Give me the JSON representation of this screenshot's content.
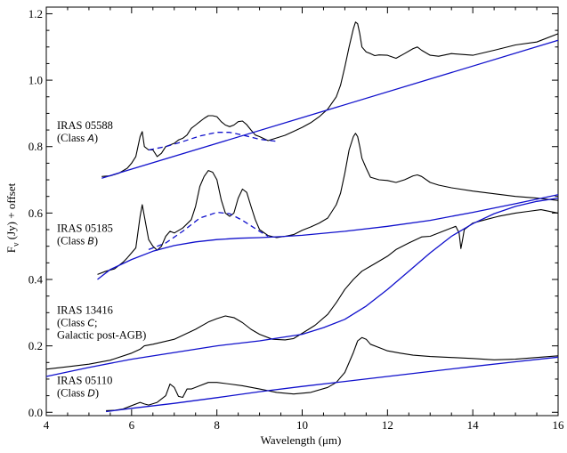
{
  "chart_data": {
    "type": "line",
    "title": "",
    "xlabel": "Wavelength (μm)",
    "ylabel": "F_ν (Jy) + offset",
    "ylabel_main": "F",
    "ylabel_sub": "ν",
    "ylabel_rest": " (Jy) + offset",
    "xlim": [
      4,
      16
    ],
    "ylim": [
      -0.01,
      1.22
    ],
    "x_ticks": [
      4,
      6,
      8,
      10,
      12,
      14,
      16
    ],
    "x_tick_labels": [
      "4",
      "6",
      "8",
      "10",
      "12",
      "14",
      "16"
    ],
    "y_ticks": [
      0.0,
      0.2,
      0.4,
      0.6,
      0.8,
      1.0,
      1.2
    ],
    "y_tick_labels": [
      "0.0",
      "0.2",
      "0.4",
      "0.6",
      "0.8",
      "1.0",
      "1.2"
    ],
    "grid": false,
    "legend": "none",
    "colors": {
      "spectrum": "#000000",
      "continuum": "#1010cc",
      "feature_fit": "#1010cc"
    },
    "annotations": [
      {
        "lines": [
          "IRAS 05588",
          "(Class A)"
        ],
        "anchor": [
          4.25,
          0.853
        ],
        "letter": "A"
      },
      {
        "lines": [
          "IRAS 05185",
          "(Class B)"
        ],
        "anchor": [
          4.25,
          0.543
        ],
        "letter": "B"
      },
      {
        "lines": [
          "IRAS 13416",
          "(Class C;",
          "Galactic post-AGB)"
        ],
        "anchor": [
          4.25,
          0.297
        ],
        "letter": "C"
      },
      {
        "lines": [
          "IRAS 05110",
          "(Class D)"
        ],
        "anchor": [
          4.25,
          0.085
        ],
        "letter": "D"
      }
    ],
    "series": [
      {
        "role": "spectrum",
        "x": [
          5.3,
          5.5,
          5.7,
          5.9,
          6.0,
          6.1,
          6.2,
          6.25,
          6.3,
          6.4,
          6.5,
          6.6,
          6.7,
          6.8,
          6.9,
          7.0,
          7.1,
          7.2,
          7.3,
          7.4,
          7.5,
          7.6,
          7.7,
          7.8,
          7.9,
          8.0,
          8.1,
          8.2,
          8.3,
          8.4,
          8.5,
          8.6,
          8.7,
          8.8,
          8.9,
          9.0,
          9.2,
          9.4,
          9.6,
          9.8,
          10.0,
          10.2,
          10.4,
          10.6,
          10.8,
          10.9,
          11.0,
          11.1,
          11.2,
          11.25,
          11.3,
          11.35,
          11.4,
          11.5,
          11.6,
          11.7,
          11.8,
          12.0,
          12.2,
          12.4,
          12.6,
          12.7,
          12.8,
          13.0,
          13.2,
          13.5,
          14.0,
          14.5,
          15.0,
          15.5,
          16.0
        ],
        "values": [
          0.71,
          0.712,
          0.72,
          0.735,
          0.75,
          0.77,
          0.83,
          0.845,
          0.8,
          0.79,
          0.79,
          0.77,
          0.78,
          0.8,
          0.805,
          0.81,
          0.82,
          0.825,
          0.835,
          0.855,
          0.865,
          0.875,
          0.885,
          0.893,
          0.893,
          0.89,
          0.875,
          0.865,
          0.86,
          0.865,
          0.875,
          0.877,
          0.866,
          0.85,
          0.835,
          0.83,
          0.818,
          0.826,
          0.834,
          0.846,
          0.858,
          0.872,
          0.89,
          0.913,
          0.95,
          0.985,
          1.04,
          1.1,
          1.155,
          1.175,
          1.17,
          1.14,
          1.1,
          1.085,
          1.08,
          1.074,
          1.076,
          1.075,
          1.066,
          1.08,
          1.095,
          1.1,
          1.09,
          1.075,
          1.072,
          1.08,
          1.075,
          1.09,
          1.106,
          1.115,
          1.14
        ]
      },
      {
        "role": "continuum",
        "x": [
          5.3,
          16.0
        ],
        "values": [
          0.705,
          1.12
        ]
      },
      {
        "role": "feature-fit",
        "dashed": true,
        "x": [
          6.4,
          6.8,
          7.2,
          7.6,
          8.0,
          8.3,
          8.6,
          9.0,
          9.4
        ],
        "values": [
          0.79,
          0.8,
          0.815,
          0.832,
          0.843,
          0.843,
          0.835,
          0.822,
          0.816
        ]
      },
      {
        "role": "spectrum",
        "x": [
          5.2,
          5.4,
          5.6,
          5.8,
          5.9,
          6.0,
          6.1,
          6.2,
          6.25,
          6.3,
          6.4,
          6.5,
          6.6,
          6.7,
          6.8,
          6.9,
          7.0,
          7.2,
          7.4,
          7.5,
          7.6,
          7.7,
          7.8,
          7.9,
          8.0,
          8.1,
          8.2,
          8.3,
          8.4,
          8.5,
          8.6,
          8.7,
          8.8,
          8.9,
          9.0,
          9.2,
          9.4,
          9.6,
          9.8,
          10.0,
          10.2,
          10.4,
          10.6,
          10.8,
          10.9,
          11.0,
          11.1,
          11.2,
          11.25,
          11.3,
          11.35,
          11.4,
          11.5,
          11.6,
          11.8,
          12.0,
          12.2,
          12.4,
          12.6,
          12.7,
          12.8,
          13.0,
          13.2,
          13.5,
          14.0,
          14.5,
          15.0,
          15.5,
          16.0
        ],
        "values": [
          0.415,
          0.425,
          0.432,
          0.452,
          0.465,
          0.48,
          0.495,
          0.59,
          0.625,
          0.59,
          0.52,
          0.5,
          0.488,
          0.5,
          0.53,
          0.545,
          0.54,
          0.555,
          0.58,
          0.62,
          0.68,
          0.71,
          0.728,
          0.723,
          0.7,
          0.64,
          0.6,
          0.59,
          0.6,
          0.645,
          0.672,
          0.662,
          0.62,
          0.58,
          0.55,
          0.532,
          0.526,
          0.53,
          0.535,
          0.548,
          0.558,
          0.57,
          0.585,
          0.625,
          0.66,
          0.72,
          0.79,
          0.83,
          0.84,
          0.83,
          0.8,
          0.765,
          0.735,
          0.708,
          0.7,
          0.698,
          0.692,
          0.7,
          0.712,
          0.715,
          0.71,
          0.692,
          0.684,
          0.676,
          0.666,
          0.658,
          0.65,
          0.645,
          0.638
        ]
      },
      {
        "role": "continuum",
        "x": [
          5.2,
          5.5,
          6.0,
          6.5,
          7.0,
          7.5,
          8.0,
          8.5,
          9.0,
          9.5,
          10.0,
          11.0,
          12.0,
          13.0,
          14.0,
          15.0,
          16.0
        ],
        "values": [
          0.4,
          0.43,
          0.46,
          0.485,
          0.502,
          0.513,
          0.52,
          0.524,
          0.526,
          0.529,
          0.533,
          0.545,
          0.56,
          0.578,
          0.602,
          0.628,
          0.655
        ]
      },
      {
        "role": "feature-fit",
        "dashed": true,
        "x": [
          6.4,
          6.8,
          7.2,
          7.6,
          8.0,
          8.3,
          8.6,
          9.0,
          9.2
        ],
        "values": [
          0.49,
          0.51,
          0.545,
          0.585,
          0.602,
          0.598,
          0.578,
          0.545,
          0.53
        ]
      },
      {
        "role": "spectrum",
        "x": [
          4.0,
          4.5,
          5.0,
          5.5,
          6.0,
          6.2,
          6.3,
          6.5,
          7.0,
          7.5,
          7.8,
          8.0,
          8.2,
          8.4,
          8.6,
          8.8,
          9.0,
          9.3,
          9.6,
          9.8,
          10.0,
          10.3,
          10.6,
          10.8,
          11.0,
          11.2,
          11.4,
          11.6,
          11.8,
          12.0,
          12.2,
          12.5,
          12.8,
          13.0,
          13.3,
          13.6,
          13.68,
          13.72,
          13.76,
          13.8,
          14.0,
          14.3,
          14.6,
          15.0,
          15.3,
          15.6,
          16.0
        ],
        "values": [
          0.13,
          0.137,
          0.145,
          0.157,
          0.178,
          0.19,
          0.2,
          0.205,
          0.22,
          0.25,
          0.272,
          0.282,
          0.29,
          0.285,
          0.27,
          0.25,
          0.235,
          0.22,
          0.218,
          0.222,
          0.238,
          0.262,
          0.295,
          0.33,
          0.37,
          0.4,
          0.425,
          0.44,
          0.455,
          0.47,
          0.49,
          0.51,
          0.528,
          0.53,
          0.545,
          0.56,
          0.54,
          0.493,
          0.52,
          0.55,
          0.57,
          0.58,
          0.59,
          0.6,
          0.605,
          0.61,
          0.6
        ]
      },
      {
        "role": "continuum",
        "x": [
          4.0,
          5.0,
          6.0,
          7.0,
          8.0,
          9.0,
          10.0,
          10.5,
          11.0,
          11.5,
          12.0,
          12.5,
          13.0,
          13.5,
          14.0,
          14.5,
          15.0,
          15.5,
          16.0
        ],
        "values": [
          0.108,
          0.135,
          0.16,
          0.18,
          0.2,
          0.215,
          0.235,
          0.255,
          0.28,
          0.32,
          0.37,
          0.425,
          0.48,
          0.53,
          0.568,
          0.598,
          0.62,
          0.635,
          0.645
        ]
      },
      {
        "role": "spectrum",
        "x": [
          5.4,
          5.6,
          5.8,
          6.0,
          6.2,
          6.3,
          6.4,
          6.6,
          6.8,
          6.9,
          7.0,
          7.1,
          7.2,
          7.3,
          7.4,
          7.6,
          7.8,
          8.0,
          8.3,
          8.6,
          9.0,
          9.4,
          9.8,
          10.2,
          10.6,
          10.8,
          11.0,
          11.2,
          11.3,
          11.4,
          11.5,
          11.6,
          11.8,
          12.0,
          12.3,
          12.6,
          13.0,
          13.5,
          14.0,
          14.5,
          15.0,
          15.5,
          16.0
        ],
        "values": [
          0.005,
          0.006,
          0.01,
          0.02,
          0.03,
          0.025,
          0.022,
          0.03,
          0.05,
          0.085,
          0.075,
          0.048,
          0.045,
          0.07,
          0.07,
          0.08,
          0.09,
          0.09,
          0.085,
          0.08,
          0.07,
          0.06,
          0.055,
          0.06,
          0.075,
          0.09,
          0.12,
          0.18,
          0.215,
          0.225,
          0.22,
          0.205,
          0.195,
          0.185,
          0.178,
          0.172,
          0.168,
          0.165,
          0.162,
          0.158,
          0.16,
          0.165,
          0.17
        ]
      },
      {
        "role": "continuum",
        "x": [
          5.4,
          6.0,
          7.0,
          8.0,
          9.0,
          10.0,
          11.0,
          12.0,
          13.0,
          14.0,
          15.0,
          16.0
        ],
        "values": [
          0.002,
          0.012,
          0.027,
          0.044,
          0.062,
          0.078,
          0.093,
          0.108,
          0.123,
          0.138,
          0.152,
          0.166
        ]
      }
    ]
  }
}
